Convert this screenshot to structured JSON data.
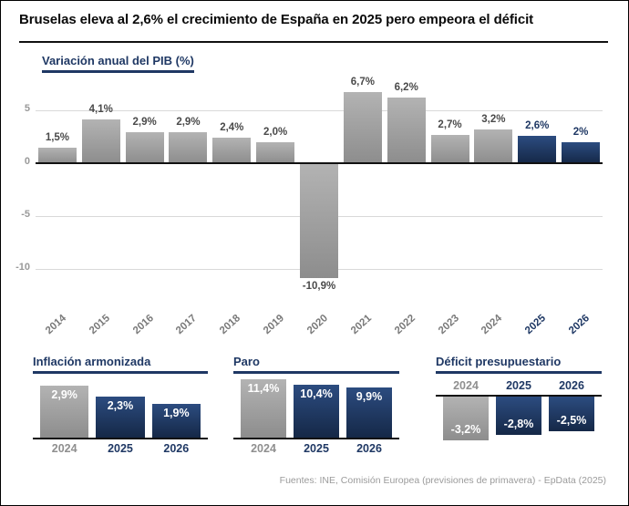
{
  "page": {
    "title": "Bruselas eleva al 2,6% el crecimiento de España en 2025 pero empeora el déficit",
    "footer": "Fuentes: INE, Comisión Europea (previsiones de primavera) - EpData (2025)"
  },
  "colors": {
    "navy": "#1f3864",
    "gray_bar_top": "#b3b3b3",
    "gray_bar_bottom": "#8d8d8d",
    "blue_bar_top": "#2c4c80",
    "blue_bar_bottom": "#152847",
    "grid": "#d9d9d9",
    "value_label_gray": "#4a4a4a"
  },
  "chart_data": [
    {
      "type": "bar",
      "title": "Variación anual del PIB (%)",
      "categories": [
        "2014",
        "2015",
        "2016",
        "2017",
        "2018",
        "2019",
        "2020",
        "2021",
        "2022",
        "2023",
        "2024",
        "2025",
        "2026"
      ],
      "values": [
        1.5,
        4.1,
        2.9,
        2.9,
        2.4,
        2.0,
        -10.9,
        6.7,
        6.2,
        2.7,
        3.2,
        2.6,
        2.0
      ],
      "labels": [
        "1,5%",
        "4,1%",
        "2,9%",
        "2,9%",
        "2,4%",
        "2,0%",
        "-10,9%",
        "6,7%",
        "6,2%",
        "2,7%",
        "3,2%",
        "2,6%",
        "2%"
      ],
      "highlight": [
        "2025",
        "2026"
      ],
      "yticks": [
        5,
        0,
        -5,
        -10
      ],
      "ylim": [
        -13.3,
        7.8
      ],
      "grid": "on",
      "legend": "none"
    },
    {
      "type": "bar",
      "title": "Inflación armonizada",
      "categories": [
        "2024",
        "2025",
        "2026"
      ],
      "values": [
        2.9,
        2.3,
        1.9
      ],
      "labels": [
        "2,9%",
        "2,3%",
        "1,9%"
      ],
      "highlight": [
        "2025",
        "2026"
      ]
    },
    {
      "type": "bar",
      "title": "Paro",
      "categories": [
        "2024",
        "2025",
        "2026"
      ],
      "values": [
        11.4,
        10.4,
        9.9
      ],
      "labels": [
        "11,4%",
        "10,4%",
        "9,9%"
      ],
      "highlight": [
        "2025",
        "2026"
      ]
    },
    {
      "type": "bar",
      "title": "Déficit presupuestario",
      "categories": [
        "2024",
        "2025",
        "2026"
      ],
      "values": [
        -3.2,
        -2.8,
        -2.5
      ],
      "labels": [
        "-3,2%",
        "-2,8%",
        "-2,5%"
      ],
      "highlight": [
        "2025",
        "2026"
      ]
    }
  ]
}
